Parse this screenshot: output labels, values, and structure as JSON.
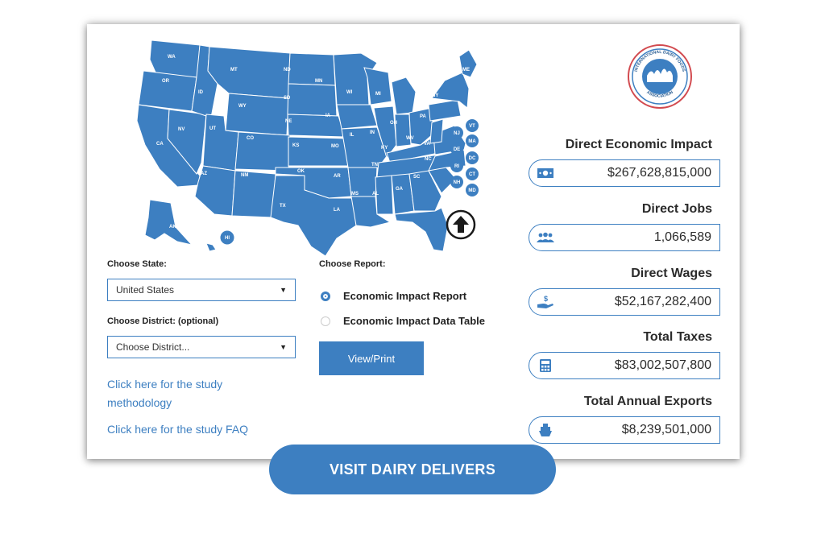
{
  "map": {
    "state_labels": [
      "WA",
      "OR",
      "ID",
      "MT",
      "WY",
      "ND",
      "SD",
      "NE",
      "MN",
      "IA",
      "WI",
      "MI",
      "IL",
      "IN",
      "OH",
      "PA",
      "NY",
      "ME",
      "CA",
      "NV",
      "UT",
      "AZ",
      "CO",
      "NM",
      "KS",
      "OK",
      "TX",
      "MO",
      "AR",
      "LA",
      "KY",
      "TN",
      "MS",
      "AL",
      "GA",
      "FL",
      "SC",
      "NC",
      "VA",
      "WV",
      "AK",
      "HI",
      "VT",
      "NH",
      "MA",
      "CT",
      "RI",
      "NJ",
      "DE",
      "MD",
      "DC",
      "MO"
    ],
    "small_states": [
      "VT",
      "NJ",
      "MA",
      "DE",
      "DC",
      "RI",
      "CT",
      "NH",
      "MD"
    ],
    "reset_icon": "up-arrow-icon",
    "color": "#3d7fc1"
  },
  "controls": {
    "state_label": "Choose State:",
    "state_value": "United States",
    "district_label": "Choose District: (optional)",
    "district_value": "Choose District...",
    "report_label": "Choose Report:",
    "report_option_1": "Economic Impact Report",
    "report_option_2": "Economic Impact Data Table",
    "view_button": "View/Print",
    "methodology_link": "Click here for the study methodology",
    "faq_link": "Click here for the study FAQ"
  },
  "logo": {
    "text_top": "INTERNATIONAL DAIRY FOODS",
    "text_bottom": "ASSOCIATION"
  },
  "stats": [
    {
      "title": "Direct Economic Impact",
      "value": "$267,628,815,000",
      "icon": "money-icon"
    },
    {
      "title": "Direct Jobs",
      "value": "1,066,589",
      "icon": "people-icon"
    },
    {
      "title": "Direct Wages",
      "value": "$52,167,282,400",
      "icon": "wages-hand-icon"
    },
    {
      "title": "Total Taxes",
      "value": "$83,002,507,800",
      "icon": "calculator-icon"
    },
    {
      "title": "Total Annual Exports",
      "value": "$8,239,501,000",
      "icon": "ship-icon"
    }
  ],
  "visit_button": "VISIT DAIRY DELIVERS"
}
